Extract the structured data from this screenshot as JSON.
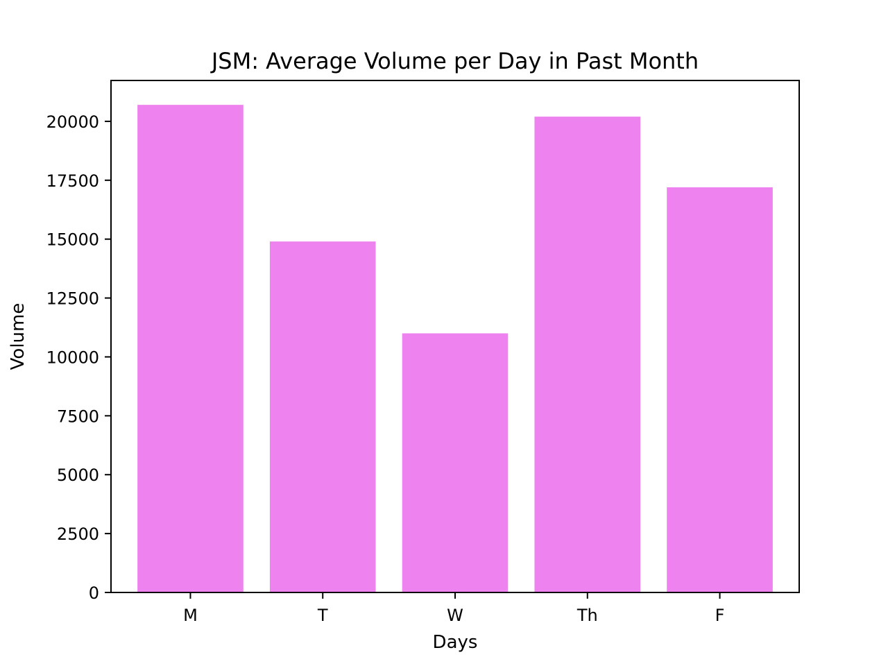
{
  "chart_data": {
    "type": "bar",
    "title": "JSM: Average Volume per Day in Past Month",
    "xlabel": "Days",
    "ylabel": "Volume",
    "categories": [
      "M",
      "T",
      "W",
      "Th",
      "F"
    ],
    "values": [
      20700,
      14900,
      11000,
      20200,
      17200
    ],
    "ylim": [
      0,
      21735
    ],
    "yticks": [
      0,
      2500,
      5000,
      7500,
      10000,
      12500,
      15000,
      17500,
      20000
    ],
    "grid": false,
    "legend": "none",
    "colors": {
      "bar": "#ee82ee",
      "axes": "#000000"
    }
  }
}
